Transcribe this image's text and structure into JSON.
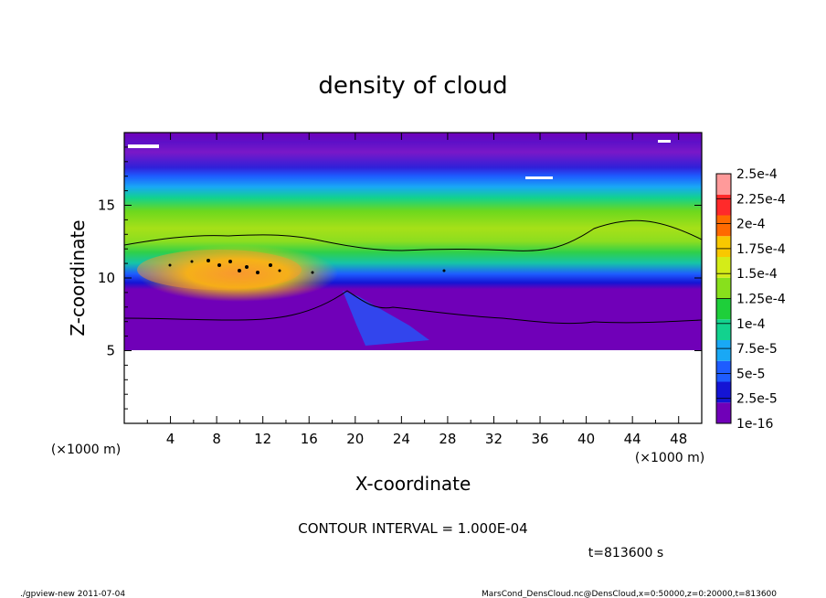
{
  "chart_data": {
    "type": "heatmap",
    "title": "density of cloud",
    "xlabel": "X-coordinate",
    "ylabel": "Z-coordinate",
    "x_unit": "(×1000 m)",
    "y_unit": "(×1000 m)",
    "xlim": [
      0,
      50
    ],
    "ylim": [
      0,
      20
    ],
    "x_ticks": [
      "4",
      "8",
      "12",
      "16",
      "20",
      "24",
      "28",
      "32",
      "36",
      "40",
      "44",
      "48"
    ],
    "y_ticks": [
      "5",
      "10",
      "15"
    ],
    "colorbar": {
      "labels": [
        "1e-16",
        "2.5e-5",
        "5e-5",
        "7.5e-5",
        "1e-4",
        "1.25e-4",
        "1.5e-4",
        "1.75e-4",
        "2e-4",
        "2.25e-4",
        "2.5e-4"
      ],
      "colors": [
        "#7000b8",
        "#1414d4",
        "#1e5cff",
        "#19a8f5",
        "#12d28e",
        "#1ecf3a",
        "#88e01c",
        "#d4ec18",
        "#f8c800",
        "#ff6a00",
        "#ff2a2a",
        "#ff9a9a"
      ]
    },
    "contour_interval": "CONTOUR INTERVAL = 1.000E-04",
    "time": "t=813600 s"
  },
  "footer": {
    "left": "./gpview-new   2011-07-04",
    "right": "MarsCond_DensCloud.nc@DensCloud,x=0:50000,z=0:20000,t=813600"
  }
}
